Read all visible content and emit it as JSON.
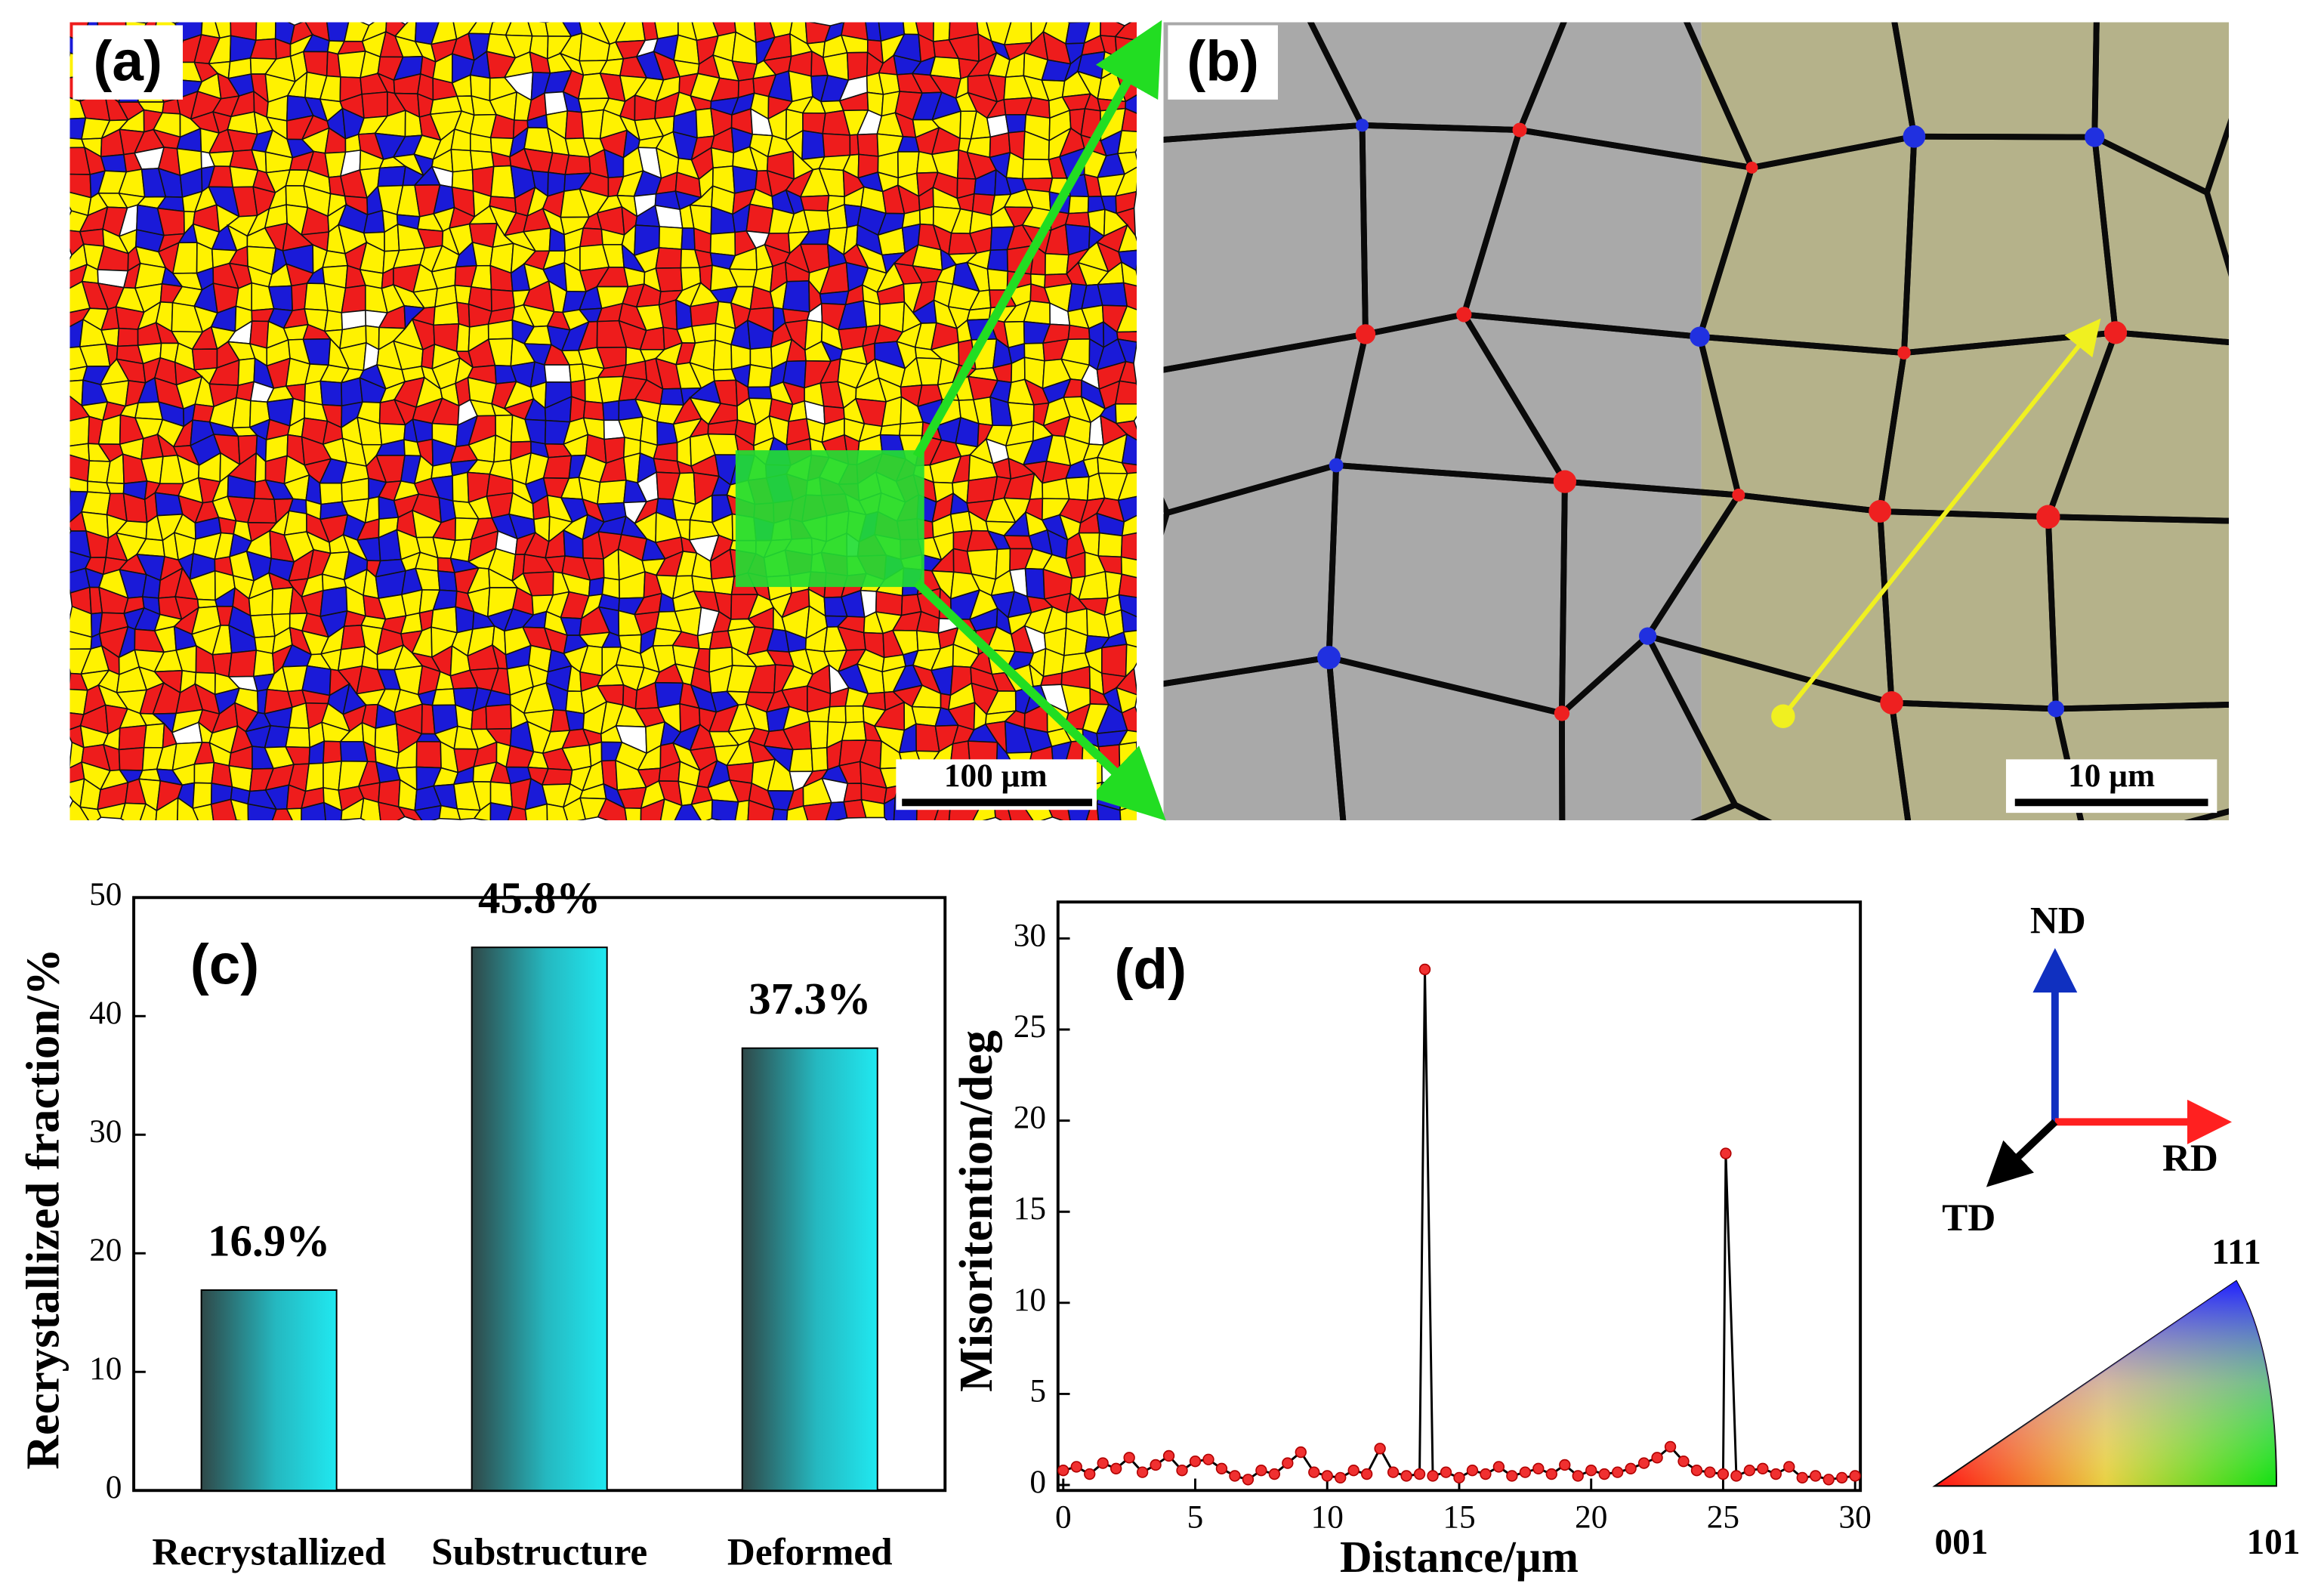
{
  "panels": {
    "a": {
      "label": "(a)",
      "scale_bar": "100 µm"
    },
    "b": {
      "label": "(b)",
      "scale_bar": "10 µm"
    }
  },
  "legend_key": {
    "axes": [
      "ND",
      "RD",
      "TD"
    ],
    "ipf": [
      "001",
      "101",
      "111"
    ]
  },
  "chart_data": [
    {
      "type": "bar",
      "title": "(c)",
      "ylabel": "Recrystallized fraction/%",
      "categories": [
        "Recrystallized",
        "Substructure",
        "Deformed"
      ],
      "values": [
        16.9,
        45.8,
        37.3
      ],
      "value_labels": [
        "16.9%",
        "45.8%",
        "37.3%"
      ],
      "color": "#20e8f0",
      "ylim": [
        0,
        50
      ],
      "yticks": [
        0,
        10,
        20,
        30,
        40,
        50
      ]
    },
    {
      "type": "line",
      "title": "(d)",
      "xlabel": "Distance/µm",
      "ylabel": "Misoritention/deg",
      "x": [
        0,
        0.5,
        1,
        1.5,
        2,
        2.5,
        3,
        3.5,
        4,
        4.5,
        5,
        5.5,
        6,
        6.5,
        7,
        7.5,
        8,
        8.5,
        9,
        9.5,
        10,
        10.5,
        11,
        11.5,
        12,
        12.5,
        13,
        13.5,
        13.7,
        14,
        14.5,
        15,
        15.5,
        16,
        16.5,
        17,
        17.5,
        18,
        18.5,
        19,
        19.5,
        20,
        20.5,
        21,
        21.5,
        22,
        22.5,
        23,
        23.5,
        24,
        24.5,
        25,
        25.1,
        25.5,
        26,
        26.5,
        27,
        27.5,
        28,
        28.5,
        29,
        29.5,
        30
      ],
      "values": [
        0.8,
        1.0,
        0.6,
        1.2,
        0.9,
        1.5,
        0.7,
        1.1,
        1.6,
        0.8,
        1.3,
        1.4,
        0.9,
        0.5,
        0.3,
        0.8,
        0.6,
        1.2,
        1.8,
        0.7,
        0.5,
        0.4,
        0.8,
        0.6,
        2.0,
        0.7,
        0.5,
        0.6,
        28.3,
        0.5,
        0.7,
        0.4,
        0.8,
        0.6,
        1.0,
        0.5,
        0.7,
        0.9,
        0.6,
        1.1,
        0.5,
        0.8,
        0.6,
        0.7,
        0.9,
        1.2,
        1.5,
        2.1,
        1.3,
        0.8,
        0.7,
        0.6,
        18.2,
        0.5,
        0.8,
        0.9,
        0.6,
        1.0,
        0.4,
        0.5,
        0.3,
        0.4,
        0.5
      ],
      "color": "#000000",
      "marker_color": "#f03030",
      "xlim": [
        -0.2,
        30.2
      ],
      "xticks": [
        0,
        5,
        10,
        15,
        20,
        25,
        30
      ],
      "ylim": [
        -0.3,
        32
      ],
      "yticks": [
        0,
        5,
        10,
        15,
        20,
        25,
        30
      ]
    }
  ]
}
